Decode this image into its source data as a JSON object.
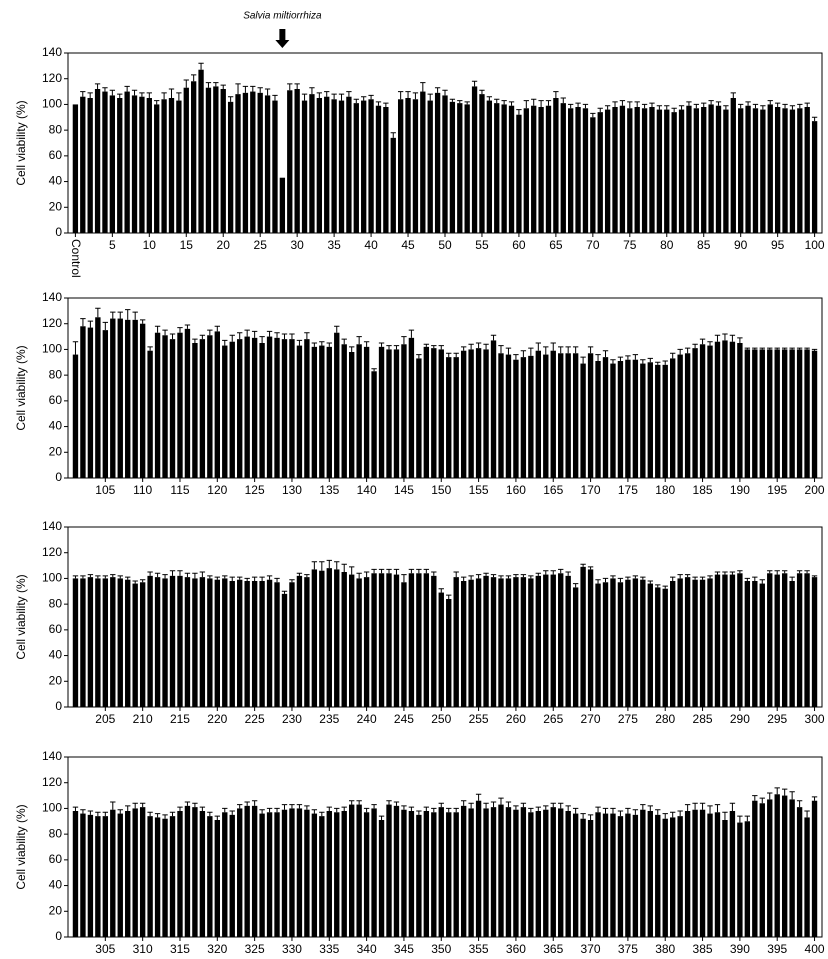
{
  "chart_data": [
    {
      "type": "bar",
      "ylabel": "Cell viability (%)",
      "annotation": "Salvia miltiorrhiza",
      "color": "#000000",
      "ylim": [
        0,
        140
      ],
      "yticks": [
        0,
        20,
        40,
        60,
        80,
        100,
        120,
        140
      ],
      "categories": [
        "Control",
        null,
        null,
        null,
        null,
        "5",
        null,
        null,
        null,
        null,
        "10",
        null,
        null,
        null,
        null,
        "15",
        null,
        null,
        null,
        null,
        "20",
        null,
        null,
        null,
        null,
        "25",
        null,
        null,
        null,
        null,
        "30",
        null,
        null,
        null,
        null,
        "35",
        null,
        null,
        null,
        null,
        "40",
        null,
        null,
        null,
        null,
        "45",
        null,
        null,
        null,
        null,
        "50",
        null,
        null,
        null,
        null,
        "55",
        null,
        null,
        null,
        null,
        "60",
        null,
        null,
        null,
        null,
        "65",
        null,
        null,
        null,
        null,
        "70",
        null,
        null,
        null,
        null,
        "75",
        null,
        null,
        null,
        null,
        "80",
        null,
        null,
        null,
        null,
        "85",
        null,
        null,
        null,
        null,
        "90",
        null,
        null,
        null,
        null,
        "95",
        null,
        null,
        null,
        null,
        "100"
      ],
      "values": [
        100,
        106,
        105,
        112,
        110,
        107,
        105,
        110,
        107,
        106,
        105,
        100,
        104,
        105,
        103,
        113,
        118,
        127,
        113,
        114,
        112,
        102,
        108,
        109,
        110,
        109,
        107,
        103,
        43,
        111,
        112,
        103,
        108,
        105,
        106,
        104,
        103,
        106,
        101,
        103,
        104,
        99,
        98,
        74,
        104,
        105,
        104,
        110,
        103,
        109,
        107,
        102,
        101,
        100,
        114,
        108,
        103,
        101,
        100,
        99,
        92,
        97,
        99,
        98,
        99,
        105,
        101,
        97,
        98,
        97,
        90,
        94,
        96,
        98,
        99,
        97,
        98,
        97,
        98,
        96,
        96,
        94,
        96,
        99,
        97,
        98,
        100,
        99,
        96,
        105,
        97,
        99,
        97,
        96,
        100,
        98,
        97,
        96,
        97,
        98,
        87
      ],
      "errors": [
        0,
        4,
        4,
        4,
        3,
        4,
        3,
        4,
        4,
        3,
        4,
        3,
        5,
        7,
        6,
        6,
        5,
        5,
        4,
        3,
        3,
        4,
        8,
        5,
        4,
        4,
        5,
        4,
        0,
        5,
        4,
        5,
        5,
        4,
        4,
        4,
        5,
        4,
        3,
        3,
        3,
        3,
        3,
        4,
        6,
        5,
        5,
        7,
        5,
        4,
        4,
        2,
        2,
        2,
        4,
        3,
        3,
        3,
        3,
        3,
        4,
        6,
        5,
        5,
        4,
        5,
        4,
        3,
        3,
        3,
        3,
        3,
        3,
        4,
        4,
        5,
        4,
        3,
        3,
        3,
        3,
        3,
        3,
        3,
        3,
        3,
        3,
        3,
        3,
        4,
        3,
        3,
        3,
        3,
        3,
        3,
        3,
        3,
        3,
        3,
        3
      ]
    },
    {
      "type": "bar",
      "ylabel": "Cell viability (%)",
      "color": "#000000",
      "ylim": [
        0,
        140
      ],
      "yticks": [
        0,
        20,
        40,
        60,
        80,
        100,
        120,
        140
      ],
      "categories": [
        null,
        null,
        null,
        null,
        "105",
        null,
        null,
        null,
        null,
        "110",
        null,
        null,
        null,
        null,
        "115",
        null,
        null,
        null,
        null,
        "120",
        null,
        null,
        null,
        null,
        "125",
        null,
        null,
        null,
        null,
        "130",
        null,
        null,
        null,
        null,
        "135",
        null,
        null,
        null,
        null,
        "140",
        null,
        null,
        null,
        null,
        "145",
        null,
        null,
        null,
        null,
        "150",
        null,
        null,
        null,
        null,
        "155",
        null,
        null,
        null,
        null,
        "160",
        null,
        null,
        null,
        null,
        "165",
        null,
        null,
        null,
        null,
        "170",
        null,
        null,
        null,
        null,
        "175",
        null,
        null,
        null,
        null,
        "180",
        null,
        null,
        null,
        null,
        "185",
        null,
        null,
        null,
        null,
        "190",
        null,
        null,
        null,
        null,
        "195",
        null,
        null,
        null,
        null,
        "200"
      ],
      "values": [
        96,
        118,
        117,
        125,
        115,
        124,
        124,
        123,
        123,
        120,
        99,
        113,
        111,
        108,
        113,
        116,
        105,
        108,
        111,
        114,
        103,
        106,
        108,
        110,
        109,
        105,
        110,
        109,
        108,
        108,
        103,
        108,
        102,
        103,
        102,
        113,
        104,
        98,
        104,
        102,
        83,
        102,
        100,
        100,
        104,
        109,
        93,
        102,
        101,
        100,
        94,
        94,
        99,
        100,
        101,
        100,
        107,
        97,
        96,
        92,
        94,
        95,
        99,
        96,
        99,
        97,
        97,
        97,
        89,
        97,
        91,
        94,
        89,
        91,
        92,
        92,
        89,
        90,
        88,
        88,
        93,
        96,
        97,
        101,
        104,
        103,
        106,
        107,
        106,
        105,
        100,
        100,
        100,
        100,
        100,
        100,
        100,
        100,
        100,
        99
      ],
      "errors": [
        10,
        6,
        5,
        7,
        6,
        5,
        5,
        8,
        6,
        3,
        3,
        5,
        4,
        4,
        4,
        3,
        3,
        3,
        4,
        4,
        4,
        5,
        5,
        5,
        5,
        5,
        4,
        4,
        4,
        4,
        4,
        5,
        3,
        3,
        3,
        5,
        4,
        4,
        6,
        4,
        2,
        3,
        3,
        3,
        6,
        6,
        3,
        2,
        2,
        3,
        3,
        3,
        3,
        4,
        4,
        4,
        4,
        6,
        5,
        4,
        5,
        6,
        6,
        6,
        6,
        5,
        5,
        5,
        5,
        5,
        5,
        5,
        3,
        3,
        3,
        4,
        3,
        3,
        2,
        3,
        4,
        4,
        4,
        3,
        4,
        3,
        5,
        5,
        5,
        4,
        1,
        1,
        1,
        1,
        1,
        1,
        1,
        1,
        1,
        1
      ]
    },
    {
      "type": "bar",
      "ylabel": "Cell viability (%)",
      "color": "#000000",
      "ylim": [
        0,
        140
      ],
      "yticks": [
        0,
        20,
        40,
        60,
        80,
        100,
        120,
        140
      ],
      "categories": [
        null,
        null,
        null,
        null,
        "205",
        null,
        null,
        null,
        null,
        "210",
        null,
        null,
        null,
        null,
        "215",
        null,
        null,
        null,
        null,
        "220",
        null,
        null,
        null,
        null,
        "225",
        null,
        null,
        null,
        null,
        "230",
        null,
        null,
        null,
        null,
        "235",
        null,
        null,
        null,
        null,
        "240",
        null,
        null,
        null,
        null,
        "245",
        null,
        null,
        null,
        null,
        "250",
        null,
        null,
        null,
        null,
        "255",
        null,
        null,
        null,
        null,
        "260",
        null,
        null,
        null,
        null,
        "265",
        null,
        null,
        null,
        null,
        "270",
        null,
        null,
        null,
        null,
        "275",
        null,
        null,
        null,
        null,
        "280",
        null,
        null,
        null,
        null,
        "285",
        null,
        null,
        null,
        null,
        "290",
        null,
        null,
        null,
        null,
        "295",
        null,
        null,
        null,
        null,
        "300"
      ],
      "values": [
        100,
        100,
        101,
        100,
        100,
        101,
        100,
        99,
        96,
        97,
        102,
        101,
        100,
        102,
        102,
        101,
        100,
        101,
        100,
        99,
        100,
        98,
        99,
        98,
        98,
        98,
        99,
        97,
        88,
        97,
        102,
        101,
        107,
        106,
        108,
        107,
        105,
        103,
        100,
        101,
        104,
        104,
        104,
        103,
        97,
        104,
        104,
        104,
        102,
        89,
        84,
        101,
        98,
        99,
        100,
        102,
        101,
        100,
        100,
        101,
        101,
        100,
        102,
        103,
        103,
        104,
        102,
        93,
        109,
        107,
        96,
        97,
        100,
        97,
        99,
        100,
        99,
        96,
        93,
        92,
        98,
        100,
        101,
        99,
        99,
        100,
        103,
        103,
        103,
        104,
        98,
        98,
        96,
        104,
        103,
        104,
        98,
        104,
        104,
        101
      ],
      "errors": [
        2,
        2,
        2,
        2,
        2,
        2,
        2,
        2,
        2,
        2,
        3,
        3,
        3,
        4,
        4,
        3,
        4,
        4,
        2,
        2,
        2,
        3,
        2,
        2,
        3,
        3,
        3,
        3,
        2,
        2,
        2,
        2,
        6,
        7,
        6,
        6,
        6,
        6,
        4,
        4,
        3,
        3,
        3,
        4,
        6,
        3,
        3,
        3,
        3,
        3,
        3,
        4,
        3,
        3,
        3,
        2,
        2,
        2,
        2,
        2,
        2,
        2,
        2,
        3,
        3,
        3,
        3,
        3,
        2,
        2,
        3,
        3,
        2,
        3,
        2,
        2,
        2,
        2,
        2,
        2,
        3,
        3,
        2,
        2,
        2,
        2,
        2,
        2,
        2,
        2,
        2,
        3,
        3,
        2,
        3,
        2,
        3,
        2,
        2,
        1
      ]
    },
    {
      "type": "bar",
      "ylabel": "Cell viability (%)",
      "color": "#000000",
      "ylim": [
        0,
        140
      ],
      "yticks": [
        0,
        20,
        40,
        60,
        80,
        100,
        120,
        140
      ],
      "categories": [
        null,
        null,
        null,
        null,
        "305",
        null,
        null,
        null,
        null,
        "310",
        null,
        null,
        null,
        null,
        "315",
        null,
        null,
        null,
        null,
        "320",
        null,
        null,
        null,
        null,
        "325",
        null,
        null,
        null,
        null,
        "330",
        null,
        null,
        null,
        null,
        "335",
        null,
        null,
        null,
        null,
        "340",
        null,
        null,
        null,
        null,
        "345",
        null,
        null,
        null,
        null,
        "350",
        null,
        null,
        null,
        null,
        "355",
        null,
        null,
        null,
        null,
        "360",
        null,
        null,
        null,
        null,
        "365",
        null,
        null,
        null,
        null,
        "370",
        null,
        null,
        null,
        null,
        "375",
        null,
        null,
        null,
        null,
        "380",
        null,
        null,
        null,
        null,
        "385",
        null,
        null,
        null,
        null,
        "390",
        null,
        null,
        null,
        null,
        "395",
        null,
        null,
        null,
        null,
        "400"
      ],
      "values": [
        98,
        96,
        95,
        94,
        94,
        99,
        96,
        98,
        100,
        101,
        94,
        93,
        92,
        94,
        98,
        102,
        101,
        98,
        94,
        91,
        97,
        95,
        100,
        102,
        102,
        96,
        97,
        97,
        99,
        100,
        100,
        99,
        96,
        94,
        98,
        97,
        98,
        103,
        103,
        97,
        100,
        91,
        103,
        102,
        99,
        98,
        95,
        98,
        97,
        101,
        97,
        97,
        102,
        100,
        106,
        100,
        101,
        103,
        101,
        99,
        101,
        97,
        98,
        99,
        101,
        100,
        98,
        96,
        92,
        91,
        97,
        96,
        96,
        94,
        96,
        95,
        99,
        98,
        95,
        92,
        93,
        94,
        98,
        99,
        99,
        96,
        97,
        91,
        98,
        89,
        90,
        106,
        104,
        107,
        111,
        110,
        107,
        101,
        93,
        106
      ],
      "errors": [
        3,
        3,
        3,
        3,
        3,
        6,
        3,
        4,
        4,
        3,
        3,
        3,
        3,
        3,
        3,
        3,
        3,
        3,
        3,
        3,
        3,
        3,
        3,
        3,
        4,
        3,
        3,
        3,
        4,
        3,
        3,
        3,
        3,
        3,
        3,
        3,
        3,
        3,
        3,
        3,
        3,
        3,
        3,
        3,
        3,
        3,
        3,
        3,
        3,
        3,
        3,
        3,
        4,
        4,
        5,
        4,
        4,
        5,
        4,
        3,
        3,
        3,
        3,
        3,
        3,
        4,
        4,
        4,
        4,
        4,
        4,
        4,
        4,
        4,
        4,
        4,
        4,
        4,
        4,
        4,
        4,
        4,
        5,
        5,
        5,
        6,
        6,
        6,
        6,
        5,
        4,
        4,
        4,
        5,
        5,
        5,
        6,
        5,
        5,
        3
      ]
    }
  ]
}
